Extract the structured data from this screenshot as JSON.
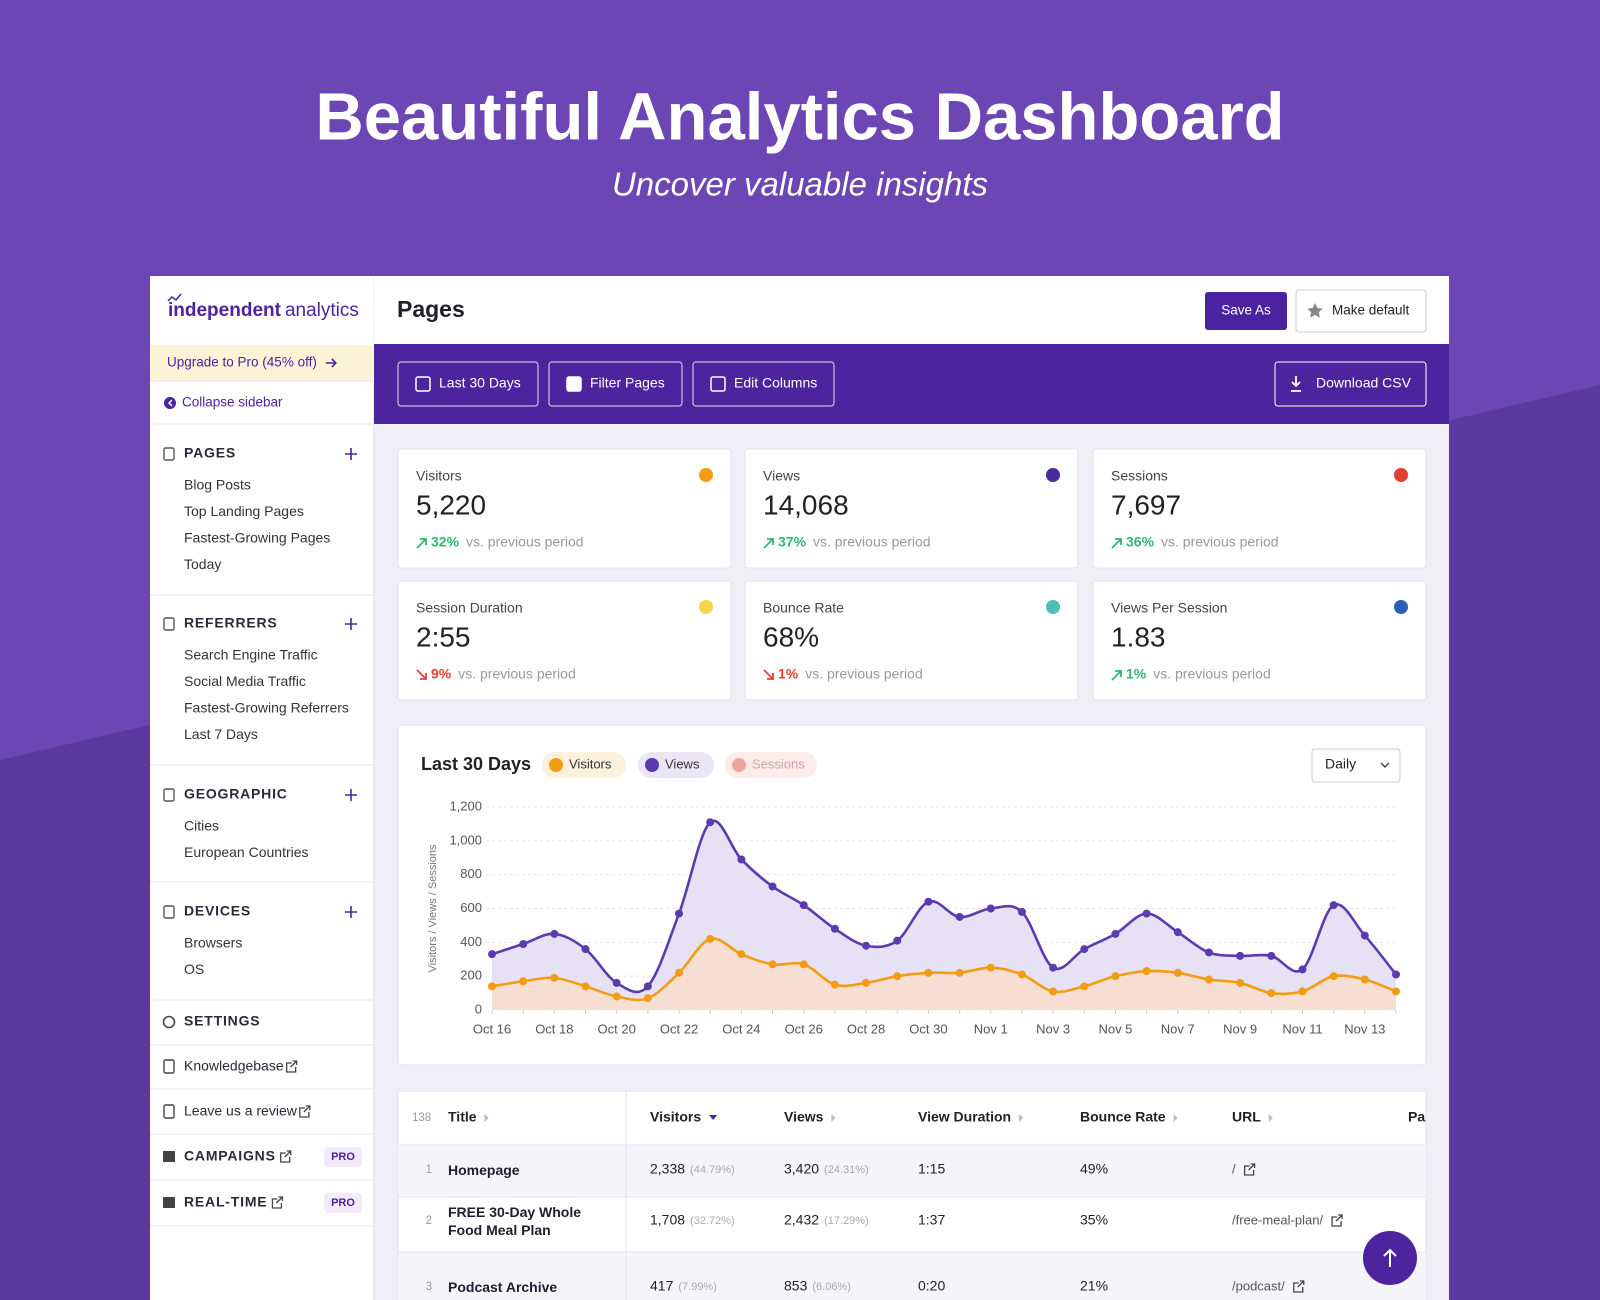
{
  "header": {
    "title": "Beautiful Analytics Dashboard",
    "subtitle": "Uncover valuable insights"
  },
  "sidebar": {
    "logo": {
      "bold": "independent",
      "light": "analytics"
    },
    "upgrade": "Upgrade to Pro (45% off)",
    "collapse": "Collapse sidebar",
    "sections": [
      {
        "title": "PAGES",
        "items": [
          "Blog Posts",
          "Top Landing Pages",
          "Fastest-Growing Pages",
          "Today"
        ]
      },
      {
        "title": "REFERRERS",
        "items": [
          "Search Engine Traffic",
          "Social Media Traffic",
          "Fastest-Growing Referrers",
          "Last 7 Days"
        ]
      },
      {
        "title": "GEOGRAPHIC",
        "items": [
          "Cities",
          "European Countries"
        ]
      },
      {
        "title": "DEVICES",
        "items": [
          "Browsers",
          "OS"
        ]
      }
    ],
    "settings": "SETTINGS",
    "links": [
      "Knowledgebase",
      "Leave us a review"
    ],
    "pro_sections": [
      {
        "title": "CAMPAIGNS",
        "badge": "PRO"
      },
      {
        "title": "REAL-TIME",
        "badge": "PRO"
      }
    ]
  },
  "page": {
    "title": "Pages",
    "save": "Save As",
    "make_default": "Make default"
  },
  "toolbar": {
    "buttons": [
      "Last 30 Days",
      "Filter Pages",
      "Edit Columns"
    ],
    "download": "Download CSV"
  },
  "stats": [
    {
      "label": "Visitors",
      "value": "5,220",
      "change": "32%",
      "trend": "up",
      "note": "vs. previous period",
      "color": "#f39c12"
    },
    {
      "label": "Views",
      "value": "14,068",
      "change": "37%",
      "trend": "up",
      "note": "vs. previous period",
      "color": "#4b2a9c"
    },
    {
      "label": "Sessions",
      "value": "7,697",
      "change": "36%",
      "trend": "up",
      "note": "vs. previous period",
      "color": "#e5402f"
    },
    {
      "label": "Session Duration",
      "value": "2:55",
      "change": "9%",
      "trend": "down",
      "note": "vs. previous period",
      "color": "#f7d44c"
    },
    {
      "label": "Bounce Rate",
      "value": "68%",
      "change": "1%",
      "trend": "down",
      "note": "vs. previous period",
      "color": "#4cbfb8"
    },
    {
      "label": "Views Per Session",
      "value": "1.83",
      "change": "1%",
      "trend": "up",
      "note": "vs. previous period",
      "color": "#2c5fb8"
    }
  ],
  "chart_data": {
    "type": "line",
    "title": "Last 30 Days",
    "interval": "Daily",
    "y_label": "Visitors / Views / Sessions",
    "categories": [
      "Oct 16",
      null,
      "Oct 18",
      null,
      "Oct 20",
      null,
      "Oct 22",
      null,
      "Oct 24",
      null,
      "Oct 26",
      null,
      "Oct 28",
      null,
      "Oct 30",
      null,
      "Nov 1",
      null,
      "Nov 3",
      null,
      "Nov 5",
      null,
      "Nov 7",
      null,
      "Nov 9",
      null,
      "Nov 11",
      null,
      "Nov 13",
      null
    ],
    "series": [
      {
        "name": "Visitors",
        "color": "#f39c12",
        "values": [
          140,
          170,
          190,
          140,
          80,
          70,
          220,
          420,
          330,
          270,
          270,
          150,
          160,
          200,
          220,
          220,
          250,
          210,
          110,
          140,
          200,
          230,
          220,
          180,
          160,
          100,
          110,
          200,
          180,
          110
        ]
      },
      {
        "name": "Views",
        "color": "#5b3bb0",
        "values": [
          330,
          390,
          450,
          360,
          160,
          140,
          570,
          1110,
          890,
          730,
          620,
          480,
          380,
          410,
          640,
          550,
          600,
          580,
          250,
          360,
          450,
          570,
          460,
          340,
          320,
          320,
          240,
          620,
          440,
          210
        ]
      }
    ],
    "hidden_series": [
      {
        "name": "Sessions",
        "color": "#f0a49c"
      }
    ],
    "ylim": [
      0,
      1200
    ],
    "yticks": [
      0,
      200,
      400,
      600,
      800,
      {
        "value": 1000,
        "label": "1,000"
      },
      {
        "value": 1200,
        "label": "1,200"
      }
    ],
    "grid": true
  },
  "table": {
    "count": "138",
    "columns": [
      "Title",
      "Visitors",
      "Views",
      "View Duration",
      "Bounce Rate",
      "URL",
      "Pa"
    ],
    "rows": [
      {
        "rank": "1",
        "title": "Homepage",
        "visitors": "2,338",
        "visitors_pct": "(44.79%)",
        "views": "3,420",
        "views_pct": "(24.31%)",
        "duration": "1:15",
        "bounce": "49%",
        "url": "/"
      },
      {
        "rank": "2",
        "title": "FREE 30-Day Whole Food Meal Plan",
        "visitors": "1,708",
        "visitors_pct": "(32.72%)",
        "views": "2,432",
        "views_pct": "(17.29%)",
        "duration": "1:37",
        "bounce": "35%",
        "url": "/free-meal-plan/"
      },
      {
        "rank": "3",
        "title": "Podcast Archive",
        "visitors": "417",
        "visitors_pct": "(7.99%)",
        "views": "853",
        "views_pct": "(6.06%)",
        "duration": "0:20",
        "bounce": "21%",
        "url": "/podcast/"
      }
    ]
  }
}
